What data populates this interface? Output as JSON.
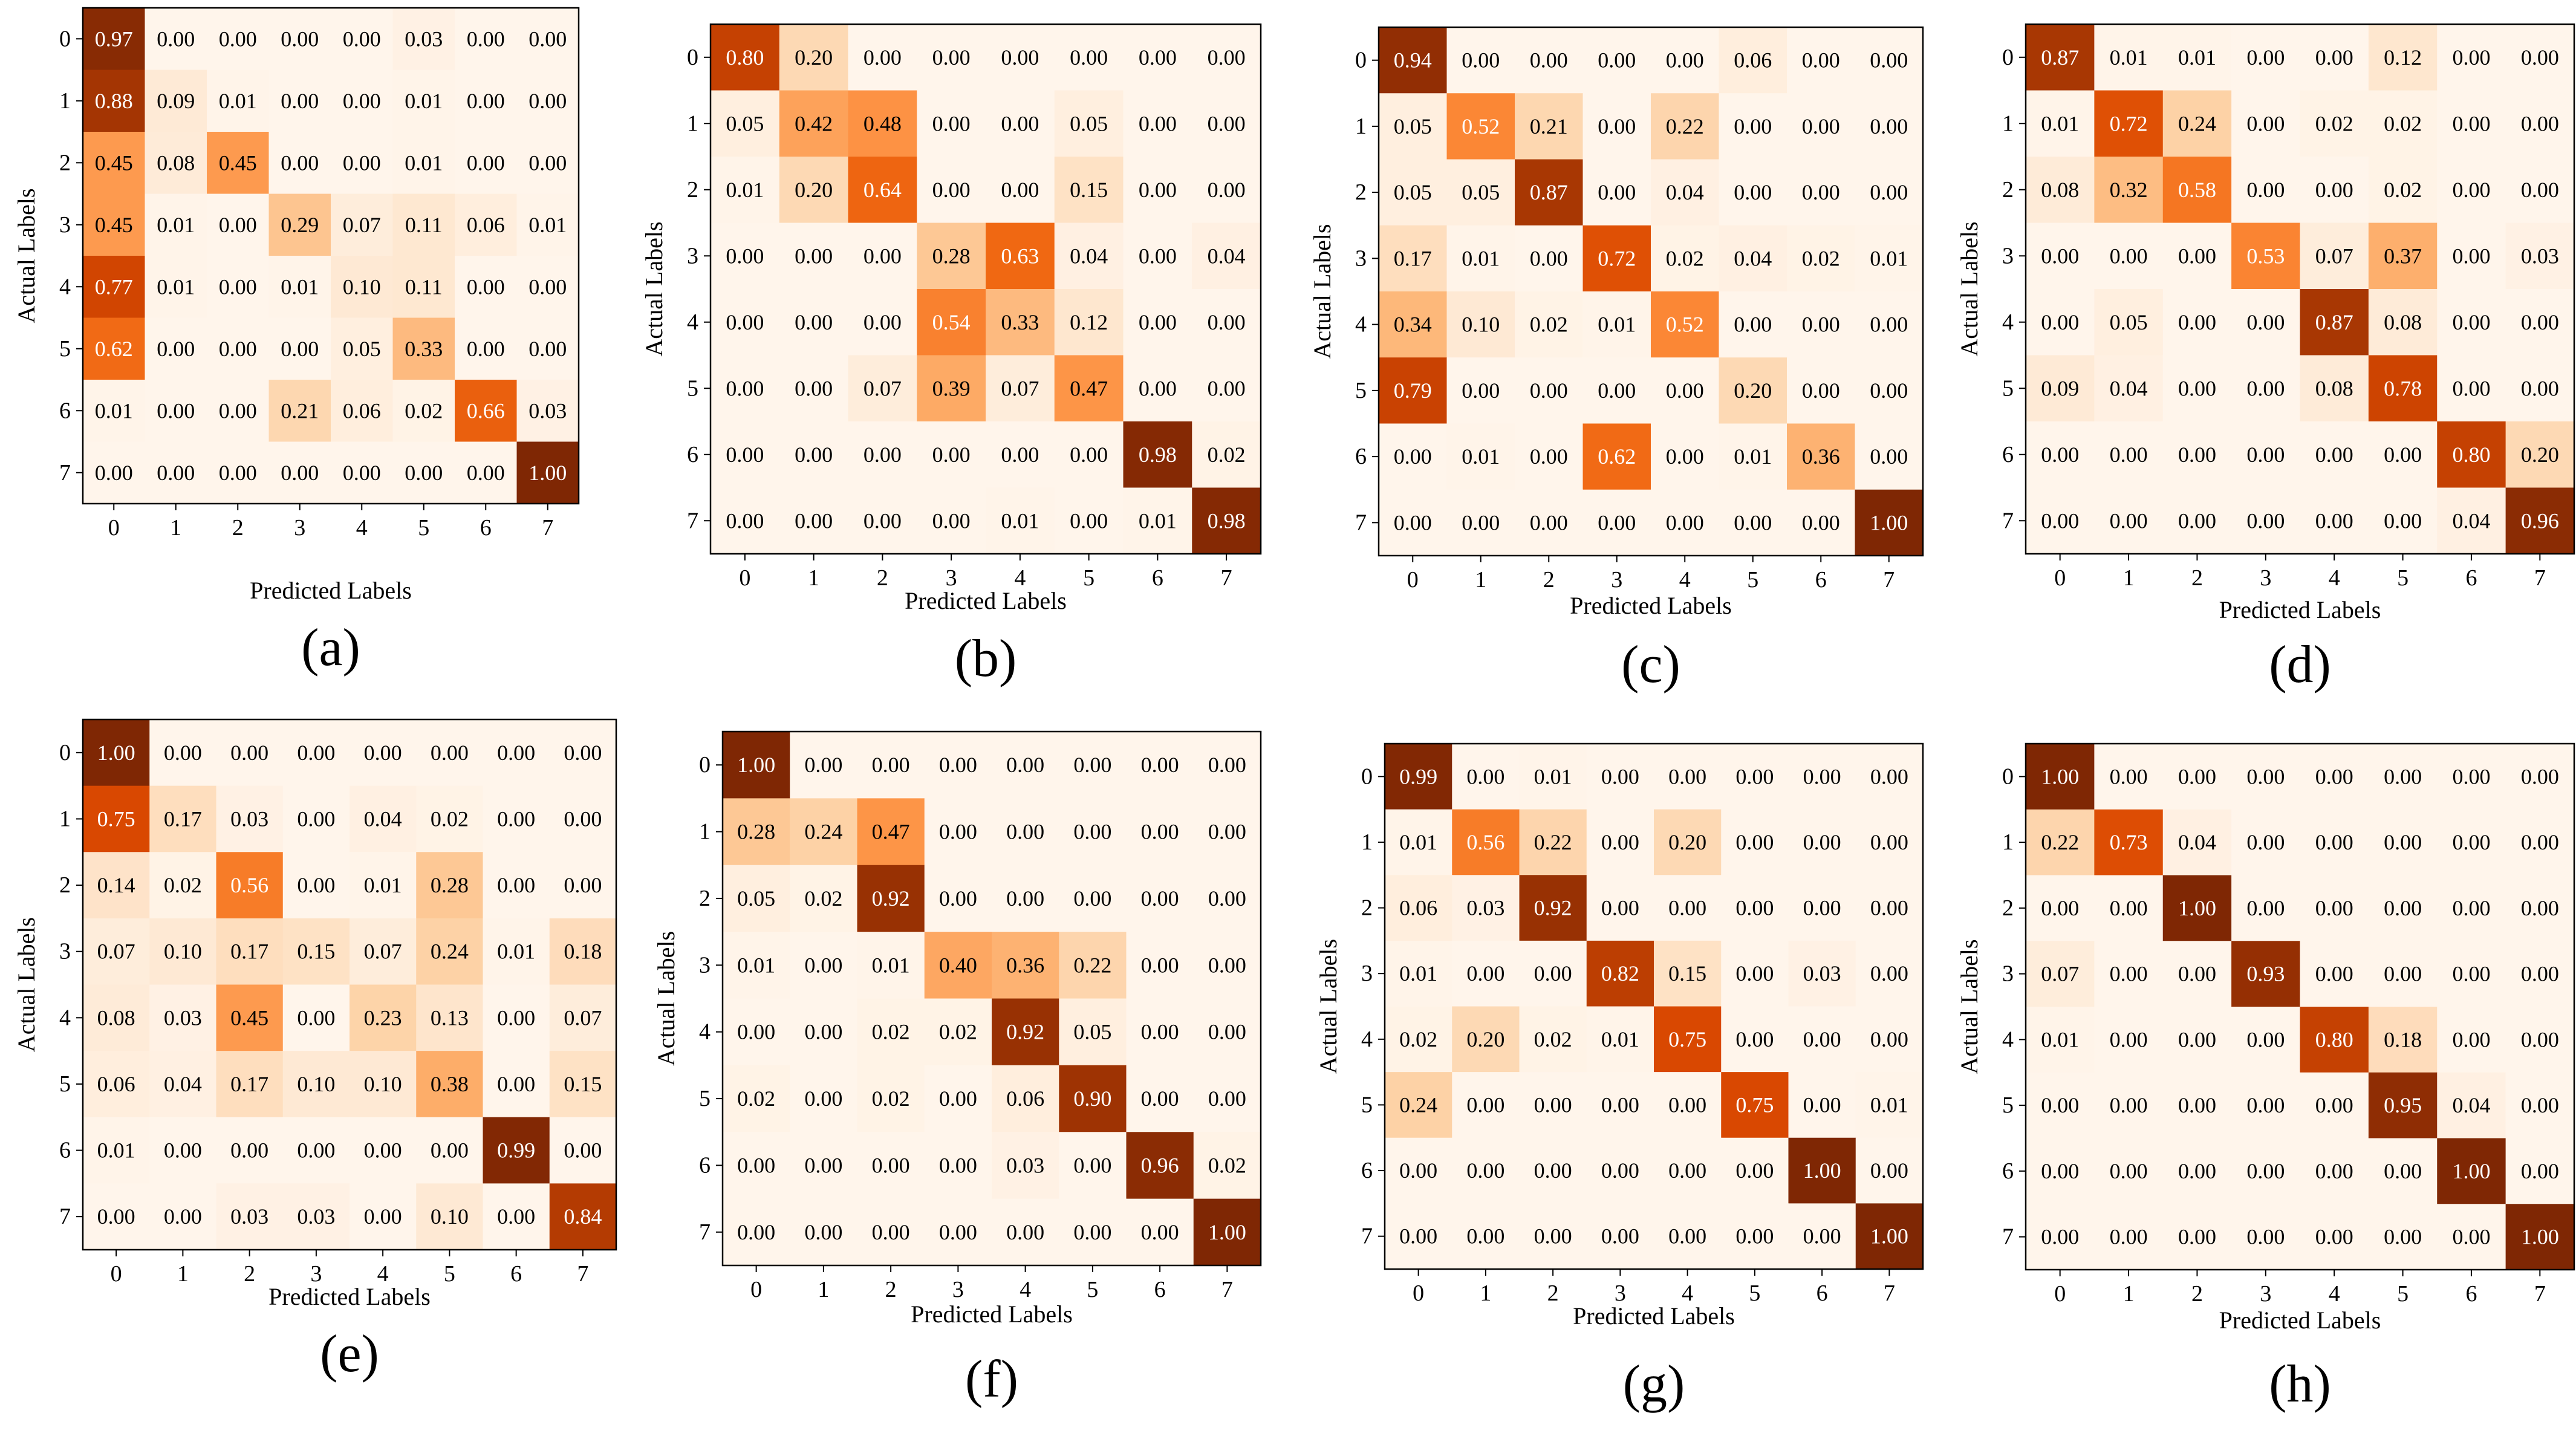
{
  "chart_data": [
    {
      "type": "heatmap",
      "panel": "(a)",
      "xlabel": "Predicted Labels",
      "ylabel": "Actual Labels",
      "x_ticks": [
        "0",
        "1",
        "2",
        "3",
        "4",
        "5",
        "6",
        "7"
      ],
      "y_ticks": [
        "0",
        "1",
        "2",
        "3",
        "4",
        "5",
        "6",
        "7"
      ],
      "cell_labels": [
        [
          "0.97",
          "0.00",
          "0.00",
          "0.00",
          "0.00",
          "0.03",
          "0.00",
          "0.00"
        ],
        [
          "0.88",
          "0.09",
          "0.01",
          "0.00",
          "0.00",
          "0.01",
          "0.00",
          "0.00"
        ],
        [
          "0.45",
          "0.08",
          "0.45",
          "0.00",
          "0.00",
          "0.01",
          "0.00",
          "0.00"
        ],
        [
          "0.45",
          "0.01",
          "0.00",
          "0.29",
          "0.07",
          "0.11",
          "0.06",
          "0.01"
        ],
        [
          "0.77",
          "0.01",
          "0.00",
          "0.01",
          "0.10",
          "0.11",
          "0.00",
          "0.00"
        ],
        [
          "0.62",
          "0.00",
          "0.00",
          "0.00",
          "0.05",
          "0.33",
          "0.00",
          "0.00"
        ],
        [
          "0.01",
          "0.00",
          "0.00",
          "0.21",
          "0.06",
          "0.02",
          "0.66",
          "0.03"
        ],
        [
          "0.00",
          "0.00",
          "0.00",
          "0.00",
          "0.00",
          "0.00",
          "0.00",
          "1.00"
        ]
      ],
      "colormap": "Oranges",
      "vmin": 0,
      "vmax": 1
    },
    {
      "type": "heatmap",
      "panel": "(b)",
      "xlabel": "Predicted Labels",
      "ylabel": "Actual Labels",
      "x_ticks": [
        "0",
        "1",
        "2",
        "3",
        "4",
        "5",
        "6",
        "7"
      ],
      "y_ticks": [
        "0",
        "1",
        "2",
        "3",
        "4",
        "5",
        "6",
        "7"
      ],
      "cell_labels": [
        [
          "0.80",
          "0.20",
          "0.00",
          "0.00",
          "0.00",
          "0.00",
          "0.00",
          "0.00"
        ],
        [
          "0.05",
          "0.42",
          "0.48",
          "0.00",
          "0.00",
          "0.05",
          "0.00",
          "0.00"
        ],
        [
          "0.01",
          "0.20",
          "0.64",
          "0.00",
          "0.00",
          "0.15",
          "0.00",
          "0.00"
        ],
        [
          "0.00",
          "0.00",
          "0.00",
          "0.28",
          "0.63",
          "0.04",
          "0.00",
          "0.04"
        ],
        [
          "0.00",
          "0.00",
          "0.00",
          "0.54",
          "0.33",
          "0.12",
          "0.00",
          "0.00"
        ],
        [
          "0.00",
          "0.00",
          "0.07",
          "0.39",
          "0.07",
          "0.47",
          "0.00",
          "0.00"
        ],
        [
          "0.00",
          "0.00",
          "0.00",
          "0.00",
          "0.00",
          "0.00",
          "0.98",
          "0.02"
        ],
        [
          "0.00",
          "0.00",
          "0.00",
          "0.00",
          "0.01",
          "0.00",
          "0.01",
          "0.98"
        ]
      ],
      "colormap": "Oranges",
      "vmin": 0,
      "vmax": 1
    },
    {
      "type": "heatmap",
      "panel": "(c)",
      "xlabel": "Predicted Labels",
      "ylabel": "Actual Labels",
      "x_ticks": [
        "0",
        "1",
        "2",
        "3",
        "4",
        "5",
        "6",
        "7"
      ],
      "y_ticks": [
        "0",
        "1",
        "2",
        "3",
        "4",
        "5",
        "6",
        "7"
      ],
      "cell_labels": [
        [
          "0.94",
          "0.00",
          "0.00",
          "0.00",
          "0.00",
          "0.06",
          "0.00",
          "0.00"
        ],
        [
          "0.05",
          "0.52",
          "0.21",
          "0.00",
          "0.22",
          "0.00",
          "0.00",
          "0.00"
        ],
        [
          "0.05",
          "0.05",
          "0.87",
          "0.00",
          "0.04",
          "0.00",
          "0.00",
          "0.00"
        ],
        [
          "0.17",
          "0.01",
          "0.00",
          "0.72",
          "0.02",
          "0.04",
          "0.02",
          "0.01"
        ],
        [
          "0.34",
          "0.10",
          "0.02",
          "0.01",
          "0.52",
          "0.00",
          "0.00",
          "0.00"
        ],
        [
          "0.79",
          "0.00",
          "0.00",
          "0.00",
          "0.00",
          "0.20",
          "0.00",
          "0.00"
        ],
        [
          "0.00",
          "0.01",
          "0.00",
          "0.62",
          "0.00",
          "0.01",
          "0.36",
          "0.00"
        ],
        [
          "0.00",
          "0.00",
          "0.00",
          "0.00",
          "0.00",
          "0.00",
          "0.00",
          "1.00"
        ]
      ],
      "colormap": "Oranges",
      "vmin": 0,
      "vmax": 1
    },
    {
      "type": "heatmap",
      "panel": "(d)",
      "xlabel": "Predicted Labels",
      "ylabel": "Actual Labels",
      "x_ticks": [
        "0",
        "1",
        "2",
        "3",
        "4",
        "5",
        "6",
        "7"
      ],
      "y_ticks": [
        "0",
        "1",
        "2",
        "3",
        "4",
        "5",
        "6",
        "7"
      ],
      "cell_labels": [
        [
          "0.87",
          "0.01",
          "0.01",
          "0.00",
          "0.00",
          "0.12",
          "0.00",
          "0.00"
        ],
        [
          "0.01",
          "0.72",
          "0.24",
          "0.00",
          "0.02",
          "0.02",
          "0.00",
          "0.00"
        ],
        [
          "0.08",
          "0.32",
          "0.58",
          "0.00",
          "0.00",
          "0.02",
          "0.00",
          "0.00"
        ],
        [
          "0.00",
          "0.00",
          "0.00",
          "0.53",
          "0.07",
          "0.37",
          "0.00",
          "0.03"
        ],
        [
          "0.00",
          "0.05",
          "0.00",
          "0.00",
          "0.87",
          "0.08",
          "0.00",
          "0.00"
        ],
        [
          "0.09",
          "0.04",
          "0.00",
          "0.00",
          "0.08",
          "0.78",
          "0.00",
          "0.00"
        ],
        [
          "0.00",
          "0.00",
          "0.00",
          "0.00",
          "0.00",
          "0.00",
          "0.80",
          "0.20"
        ],
        [
          "0.00",
          "0.00",
          "0.00",
          "0.00",
          "0.00",
          "0.00",
          "0.04",
          "0.96"
        ]
      ],
      "colormap": "Oranges",
      "vmin": 0,
      "vmax": 1
    },
    {
      "type": "heatmap",
      "panel": "(e)",
      "xlabel": "Predicted Labels",
      "ylabel": "Actual Labels",
      "x_ticks": [
        "0",
        "1",
        "2",
        "3",
        "4",
        "5",
        "6",
        "7"
      ],
      "y_ticks": [
        "0",
        "1",
        "2",
        "3",
        "4",
        "5",
        "6",
        "7"
      ],
      "cell_labels": [
        [
          "1.00",
          "0.00",
          "0.00",
          "0.00",
          "0.00",
          "0.00",
          "0.00",
          "0.00"
        ],
        [
          "0.75",
          "0.17",
          "0.03",
          "0.00",
          "0.04",
          "0.02",
          "0.00",
          "0.00"
        ],
        [
          "0.14",
          "0.02",
          "0.56",
          "0.00",
          "0.01",
          "0.28",
          "0.00",
          "0.00"
        ],
        [
          "0.07",
          "0.10",
          "0.17",
          "0.15",
          "0.07",
          "0.24",
          "0.01",
          "0.18"
        ],
        [
          "0.08",
          "0.03",
          "0.45",
          "0.00",
          "0.23",
          "0.13",
          "0.00",
          "0.07"
        ],
        [
          "0.06",
          "0.04",
          "0.17",
          "0.10",
          "0.10",
          "0.38",
          "0.00",
          "0.15"
        ],
        [
          "0.01",
          "0.00",
          "0.00",
          "0.00",
          "0.00",
          "0.00",
          "0.99",
          "0.00"
        ],
        [
          "0.00",
          "0.00",
          "0.03",
          "0.03",
          "0.00",
          "0.10",
          "0.00",
          "0.84"
        ]
      ],
      "colormap": "Oranges",
      "vmin": 0,
      "vmax": 1
    },
    {
      "type": "heatmap",
      "panel": "(f)",
      "xlabel": "Predicted Labels",
      "ylabel": "Actual Labels",
      "x_ticks": [
        "0",
        "1",
        "2",
        "3",
        "4",
        "5",
        "6",
        "7"
      ],
      "y_ticks": [
        "0",
        "1",
        "2",
        "3",
        "4",
        "5",
        "6",
        "7"
      ],
      "cell_labels": [
        [
          "1.00",
          "0.00",
          "0.00",
          "0.00",
          "0.00",
          "0.00",
          "0.00",
          "0.00"
        ],
        [
          "0.28",
          "0.24",
          "0.47",
          "0.00",
          "0.00",
          "0.00",
          "0.00",
          "0.00"
        ],
        [
          "0.05",
          "0.02",
          "0.92",
          "0.00",
          "0.00",
          "0.00",
          "0.00",
          "0.00"
        ],
        [
          "0.01",
          "0.00",
          "0.01",
          "0.40",
          "0.36",
          "0.22",
          "0.00",
          "0.00"
        ],
        [
          "0.00",
          "0.00",
          "0.02",
          "0.02",
          "0.92",
          "0.05",
          "0.00",
          "0.00"
        ],
        [
          "0.02",
          "0.00",
          "0.02",
          "0.00",
          "0.06",
          "0.90",
          "0.00",
          "0.00"
        ],
        [
          "0.00",
          "0.00",
          "0.00",
          "0.00",
          "0.03",
          "0.00",
          "0.96",
          "0.02"
        ],
        [
          "0.00",
          "0.00",
          "0.00",
          "0.00",
          "0.00",
          "0.00",
          "0.00",
          "1.00"
        ]
      ],
      "colormap": "Oranges",
      "vmin": 0,
      "vmax": 1
    },
    {
      "type": "heatmap",
      "panel": "(g)",
      "xlabel": "Predicted Labels",
      "ylabel": "Actual Labels",
      "x_ticks": [
        "0",
        "1",
        "2",
        "3",
        "4",
        "5",
        "6",
        "7"
      ],
      "y_ticks": [
        "0",
        "1",
        "2",
        "3",
        "4",
        "5",
        "6",
        "7"
      ],
      "cell_labels": [
        [
          "0.99",
          "0.00",
          "0.01",
          "0.00",
          "0.00",
          "0.00",
          "0.00",
          "0.00"
        ],
        [
          "0.01",
          "0.56",
          "0.22",
          "0.00",
          "0.20",
          "0.00",
          "0.00",
          "0.00"
        ],
        [
          "0.06",
          "0.03",
          "0.92",
          "0.00",
          "0.00",
          "0.00",
          "0.00",
          "0.00"
        ],
        [
          "0.01",
          "0.00",
          "0.00",
          "0.82",
          "0.15",
          "0.00",
          "0.03",
          "0.00"
        ],
        [
          "0.02",
          "0.20",
          "0.02",
          "0.01",
          "0.75",
          "0.00",
          "0.00",
          "0.00"
        ],
        [
          "0.24",
          "0.00",
          "0.00",
          "0.00",
          "0.00",
          "0.75",
          "0.00",
          "0.01"
        ],
        [
          "0.00",
          "0.00",
          "0.00",
          "0.00",
          "0.00",
          "0.00",
          "1.00",
          "0.00"
        ],
        [
          "0.00",
          "0.00",
          "0.00",
          "0.00",
          "0.00",
          "0.00",
          "0.00",
          "1.00"
        ]
      ],
      "colormap": "Oranges",
      "vmin": 0,
      "vmax": 1
    },
    {
      "type": "heatmap",
      "panel": "(h)",
      "xlabel": "Predicted Labels",
      "ylabel": "Actual Labels",
      "x_ticks": [
        "0",
        "1",
        "2",
        "3",
        "4",
        "5",
        "6",
        "7"
      ],
      "y_ticks": [
        "0",
        "1",
        "2",
        "3",
        "4",
        "5",
        "6",
        "7"
      ],
      "cell_labels": [
        [
          "1.00",
          "0.00",
          "0.00",
          "0.00",
          "0.00",
          "0.00",
          "0.00",
          "0.00"
        ],
        [
          "0.22",
          "0.73",
          "0.04",
          "0.00",
          "0.00",
          "0.00",
          "0.00",
          "0.00"
        ],
        [
          "0.00",
          "0.00",
          "1.00",
          "0.00",
          "0.00",
          "0.00",
          "0.00",
          "0.00"
        ],
        [
          "0.07",
          "0.00",
          "0.00",
          "0.93",
          "0.00",
          "0.00",
          "0.00",
          "0.00"
        ],
        [
          "0.01",
          "0.00",
          "0.00",
          "0.00",
          "0.80",
          "0.18",
          "0.00",
          "0.00"
        ],
        [
          "0.00",
          "0.00",
          "0.00",
          "0.00",
          "0.00",
          "0.95",
          "0.04",
          "0.00"
        ],
        [
          "0.00",
          "0.00",
          "0.00",
          "0.00",
          "0.00",
          "0.00",
          "1.00",
          "0.00"
        ],
        [
          "0.00",
          "0.00",
          "0.00",
          "0.00",
          "0.00",
          "0.00",
          "0.00",
          "1.00"
        ]
      ],
      "colormap": "Oranges",
      "vmin": 0,
      "vmax": 1
    }
  ]
}
